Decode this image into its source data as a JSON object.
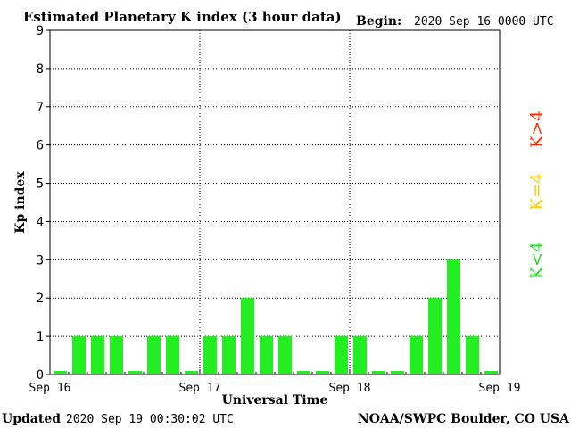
{
  "chart_data": {
    "type": "bar",
    "title": "Estimated Planetary K index (3 hour data)",
    "begin_label": "Begin:",
    "begin_value": "2020 Sep 16 0000 UTC",
    "ylabel": "Kp index",
    "xlabel": "Universal Time",
    "ylim": [
      0,
      9
    ],
    "yticks": [
      "0",
      "1",
      "2",
      "3",
      "4",
      "5",
      "6",
      "7",
      "8",
      "9"
    ],
    "xticks": [
      "Sep 16",
      "Sep 17",
      "Sep 18",
      "Sep 19"
    ],
    "interval_hours": 3,
    "values": [
      0,
      1,
      1,
      1,
      0,
      1,
      1,
      0,
      1,
      1,
      2,
      1,
      1,
      0,
      0,
      1,
      1,
      0,
      0,
      1,
      2,
      3,
      1,
      0
    ],
    "grid": true,
    "legend": [
      {
        "label": "K>4",
        "color": "#ff2a00"
      },
      {
        "label": "K=4",
        "color": "#ffcc00"
      },
      {
        "label": "K<4",
        "color": "#22dd22"
      }
    ],
    "bar_color": "#22ee22"
  },
  "footer": {
    "updated_label": "Updated",
    "updated_value": "2020 Sep 19 00:30:02 UTC",
    "source": "NOAA/SWPC Boulder, CO USA"
  }
}
